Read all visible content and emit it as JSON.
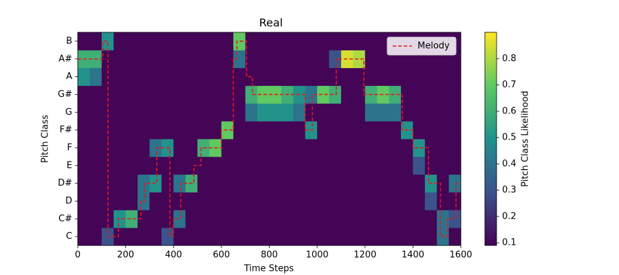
{
  "chart_data": {
    "type": "heatmap",
    "title": "Real",
    "xlabel": "Time Steps",
    "ylabel": "Pitch Class",
    "colorbar_label": "Pitch Class Likelihood",
    "colormap": "viridis",
    "categories": [
      "C",
      "C#",
      "D",
      "D#",
      "E",
      "F",
      "F#",
      "G",
      "G#",
      "A",
      "A#",
      "B"
    ],
    "ylim": [
      -0.5,
      11.5
    ],
    "xlim": [
      0,
      1600
    ],
    "xticks": [
      0,
      200,
      400,
      600,
      800,
      1000,
      1200,
      1400,
      1600
    ],
    "clim": [
      0.09,
      0.9
    ],
    "cticks": [
      0.1,
      0.2,
      0.3,
      0.4,
      0.5,
      0.6,
      0.7,
      0.8
    ],
    "time_bins": [
      0,
      50,
      100,
      150,
      200,
      250,
      300,
      350,
      400,
      450,
      500,
      550,
      600,
      650,
      700,
      750,
      800,
      850,
      900,
      950,
      1000,
      1050,
      1100,
      1150,
      1200,
      1250,
      1300,
      1350,
      1400,
      1450,
      1500,
      1550,
      1600
    ],
    "z": [
      [
        0.1,
        0.1,
        0.3,
        0.1,
        0.1,
        0.1,
        0.1,
        0.3,
        0.1,
        0.1,
        0.1,
        0.1,
        0.1,
        0.1,
        0.1,
        0.1,
        0.1,
        0.1,
        0.1,
        0.1,
        0.1,
        0.1,
        0.1,
        0.1,
        0.1,
        0.1,
        0.1,
        0.1,
        0.1,
        0.1,
        0.4,
        0.1
      ],
      [
        0.1,
        0.1,
        0.1,
        0.5,
        0.6,
        0.1,
        0.1,
        0.1,
        0.4,
        0.1,
        0.1,
        0.1,
        0.1,
        0.1,
        0.1,
        0.1,
        0.1,
        0.1,
        0.1,
        0.1,
        0.1,
        0.1,
        0.1,
        0.1,
        0.1,
        0.1,
        0.1,
        0.1,
        0.1,
        0.1,
        0.4,
        0.3
      ],
      [
        0.1,
        0.1,
        0.1,
        0.1,
        0.1,
        0.4,
        0.1,
        0.1,
        0.1,
        0.1,
        0.1,
        0.1,
        0.1,
        0.1,
        0.1,
        0.1,
        0.1,
        0.1,
        0.1,
        0.1,
        0.1,
        0.1,
        0.1,
        0.1,
        0.1,
        0.1,
        0.1,
        0.1,
        0.1,
        0.3,
        0.1,
        0.1
      ],
      [
        0.1,
        0.1,
        0.1,
        0.1,
        0.1,
        0.4,
        0.5,
        0.1,
        0.4,
        0.6,
        0.1,
        0.1,
        0.1,
        0.1,
        0.1,
        0.1,
        0.1,
        0.1,
        0.1,
        0.1,
        0.1,
        0.1,
        0.1,
        0.1,
        0.1,
        0.1,
        0.1,
        0.1,
        0.1,
        0.5,
        0.1,
        0.4
      ],
      [
        0.1,
        0.1,
        0.1,
        0.1,
        0.1,
        0.1,
        0.1,
        0.1,
        0.1,
        0.1,
        0.1,
        0.1,
        0.1,
        0.1,
        0.1,
        0.1,
        0.1,
        0.1,
        0.1,
        0.1,
        0.1,
        0.1,
        0.1,
        0.1,
        0.1,
        0.1,
        0.1,
        0.1,
        0.3,
        0.1,
        0.1,
        0.1
      ],
      [
        0.1,
        0.1,
        0.1,
        0.1,
        0.1,
        0.1,
        0.4,
        0.5,
        0.1,
        0.1,
        0.6,
        0.7,
        0.1,
        0.1,
        0.1,
        0.1,
        0.1,
        0.1,
        0.1,
        0.1,
        0.1,
        0.1,
        0.1,
        0.1,
        0.1,
        0.1,
        0.1,
        0.1,
        0.5,
        0.1,
        0.1,
        0.1
      ],
      [
        0.1,
        0.1,
        0.1,
        0.1,
        0.1,
        0.1,
        0.1,
        0.1,
        0.1,
        0.1,
        0.1,
        0.1,
        0.7,
        0.1,
        0.1,
        0.1,
        0.1,
        0.1,
        0.1,
        0.5,
        0.1,
        0.1,
        0.1,
        0.1,
        0.1,
        0.1,
        0.1,
        0.5,
        0.1,
        0.1,
        0.1,
        0.1
      ],
      [
        0.1,
        0.1,
        0.1,
        0.1,
        0.1,
        0.1,
        0.1,
        0.1,
        0.1,
        0.1,
        0.1,
        0.1,
        0.1,
        0.1,
        0.4,
        0.5,
        0.5,
        0.5,
        0.4,
        0.1,
        0.1,
        0.1,
        0.1,
        0.1,
        0.4,
        0.4,
        0.4,
        0.1,
        0.1,
        0.1,
        0.1,
        0.1
      ],
      [
        0.1,
        0.1,
        0.1,
        0.1,
        0.1,
        0.1,
        0.1,
        0.1,
        0.1,
        0.1,
        0.1,
        0.1,
        0.1,
        0.1,
        0.6,
        0.7,
        0.7,
        0.6,
        0.5,
        0.4,
        0.7,
        0.6,
        0.1,
        0.1,
        0.6,
        0.7,
        0.6,
        0.1,
        0.1,
        0.1,
        0.1,
        0.1
      ],
      [
        0.5,
        0.4,
        0.1,
        0.1,
        0.1,
        0.1,
        0.1,
        0.1,
        0.1,
        0.1,
        0.1,
        0.1,
        0.1,
        0.1,
        0.1,
        0.1,
        0.1,
        0.1,
        0.1,
        0.1,
        0.1,
        0.1,
        0.1,
        0.1,
        0.1,
        0.1,
        0.1,
        0.1,
        0.1,
        0.1,
        0.1,
        0.1
      ],
      [
        0.6,
        0.6,
        0.1,
        0.1,
        0.1,
        0.1,
        0.1,
        0.1,
        0.1,
        0.1,
        0.1,
        0.1,
        0.1,
        0.4,
        0.1,
        0.1,
        0.1,
        0.1,
        0.1,
        0.1,
        0.1,
        0.3,
        0.85,
        0.8,
        0.1,
        0.1,
        0.1,
        0.1,
        0.1,
        0.1,
        0.1,
        0.1
      ],
      [
        0.1,
        0.1,
        0.5,
        0.1,
        0.1,
        0.1,
        0.1,
        0.1,
        0.1,
        0.1,
        0.1,
        0.1,
        0.1,
        0.7,
        0.1,
        0.1,
        0.1,
        0.1,
        0.1,
        0.1,
        0.1,
        0.1,
        0.1,
        0.1,
        0.1,
        0.1,
        0.1,
        0.1,
        0.1,
        0.1,
        0.1,
        0.1
      ]
    ],
    "series": [
      {
        "name": "Melody",
        "color": "#e8161b",
        "x": [
          0,
          105,
          126,
          170,
          264,
          280,
          330,
          385,
          400,
          430,
          485,
          515,
          600,
          650,
          665,
          705,
          730,
          950,
          980,
          1080,
          1195,
          1355,
          1400,
          1465,
          1515,
          1545,
          1580
        ],
        "values": [
          10,
          11,
          0,
          1,
          2,
          3,
          5,
          0,
          1,
          3,
          4,
          5,
          6,
          10,
          11,
          9,
          8,
          6,
          8,
          10,
          8,
          6,
          5,
          3,
          0,
          1,
          3
        ]
      }
    ],
    "legend": "upper right"
  }
}
